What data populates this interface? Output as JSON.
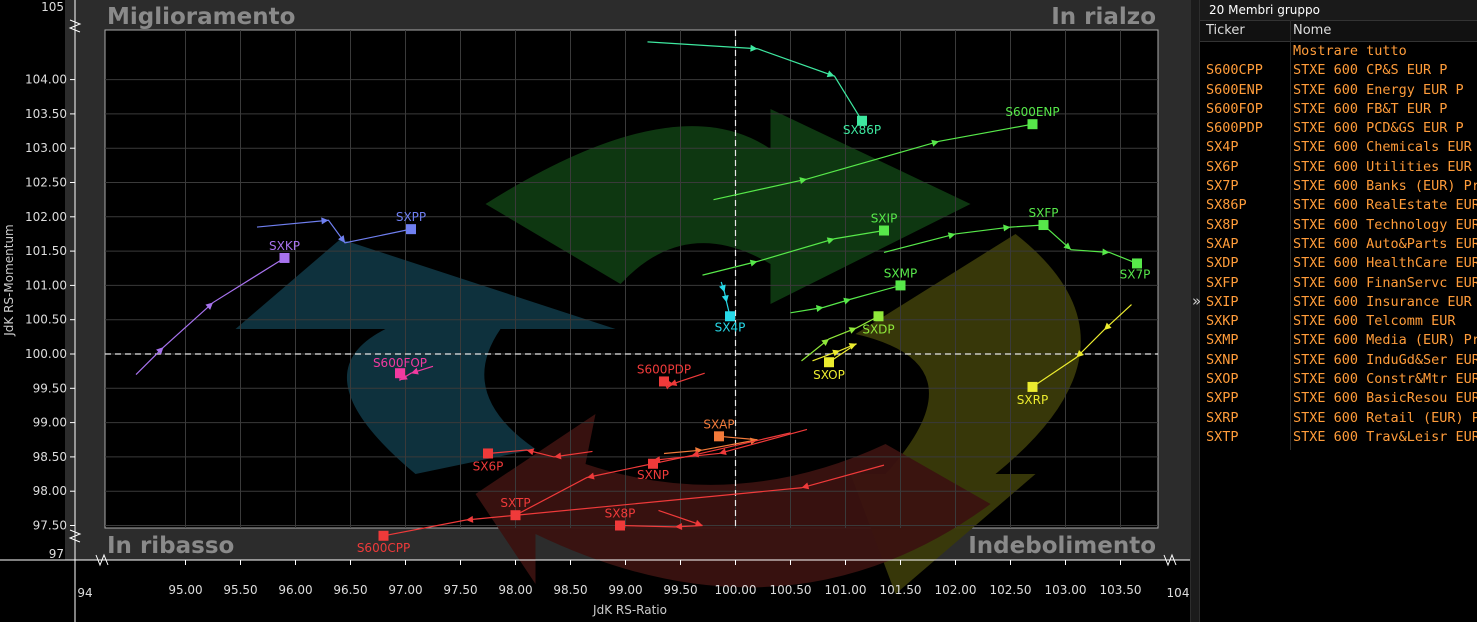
{
  "panel": {
    "title": "20 Membri gruppo",
    "col_ticker": "Ticker",
    "col_name": "Nome",
    "show_all": "Mostrare tutto",
    "rows": [
      {
        "ticker": "S600CPP",
        "name": "STXE 600 CP&S EUR P"
      },
      {
        "ticker": "S600ENP",
        "name": "STXE 600 Energy EUR P"
      },
      {
        "ticker": "S600FOP",
        "name": "STXE 600 FB&T EUR P"
      },
      {
        "ticker": "S600PDP",
        "name": "STXE 600 PCD&GS EUR P"
      },
      {
        "ticker": "SX4P",
        "name": "STXE 600 Chemicals EUR"
      },
      {
        "ticker": "SX6P",
        "name": "STXE 600 Utilities EUR"
      },
      {
        "ticker": "SX7P",
        "name": "STXE 600 Banks (EUR) Pr"
      },
      {
        "ticker": "SX86P",
        "name": "STXE 600 RealEstate EUR"
      },
      {
        "ticker": "SX8P",
        "name": "STXE 600 Technology EUR"
      },
      {
        "ticker": "SXAP",
        "name": "STXE 600 Auto&Parts EUR"
      },
      {
        "ticker": "SXDP",
        "name": "STXE 600 HealthCare EUR"
      },
      {
        "ticker": "SXFP",
        "name": "STXE 600 FinanServc EUR"
      },
      {
        "ticker": "SXIP",
        "name": "STXE 600 Insurance EUR"
      },
      {
        "ticker": "SXKP",
        "name": "STXE 600 Telcomm EUR"
      },
      {
        "ticker": "SXMP",
        "name": "STXE 600 Media (EUR) Pr"
      },
      {
        "ticker": "SXNP",
        "name": "STXE 600 InduGd&Ser EUR"
      },
      {
        "ticker": "SXOP",
        "name": "STXE 600 Constr&Mtr EUR"
      },
      {
        "ticker": "SXPP",
        "name": "STXE 600 BasicResou EUR"
      },
      {
        "ticker": "SXRP",
        "name": "STXE 600 Retail (EUR) Pr"
      },
      {
        "ticker": "SXTP",
        "name": "STXE 600 Trav&Leisr EUR"
      }
    ]
  },
  "chart_data": {
    "type": "scatter",
    "subtype": "relative-rotation-graph",
    "xlabel": "JdK RS-Ratio",
    "ylabel": "JdK RS-Momentum",
    "xlim": [
      94,
      104
    ],
    "ylim": [
      97,
      105
    ],
    "x_ticks": [
      95.0,
      95.5,
      96.0,
      96.5,
      97.0,
      97.5,
      98.0,
      98.5,
      99.0,
      99.5,
      100.0,
      100.5,
      101.0,
      101.5,
      102.0,
      102.5,
      103.0,
      103.5
    ],
    "x_tick_labels": [
      "95.00",
      "95.50",
      "96.00",
      "96.50",
      "97.00",
      "97.50",
      "98.00",
      "98.50",
      "99.00",
      "99.50",
      "100.00",
      "100.50",
      "101.00",
      "101.50",
      "102.00",
      "102.50",
      "103.00",
      "103.50"
    ],
    "y_ticks": [
      97.5,
      98.0,
      98.5,
      99.0,
      99.5,
      100.0,
      100.5,
      101.0,
      101.5,
      102.0,
      102.5,
      103.0,
      103.5,
      104.0
    ],
    "y_tick_labels": [
      "97.50",
      "98.00",
      "98.50",
      "99.00",
      "99.50",
      "100.00",
      "100.50",
      "101.00",
      "101.50",
      "102.00",
      "102.50",
      "103.00",
      "103.50",
      "104.00"
    ],
    "axis_break_labels": {
      "x_min": "94",
      "x_max": "104",
      "y_min": "97",
      "y_max": "105"
    },
    "quadrants": {
      "top_left": "Miglioramento",
      "top_right": "In rialzo",
      "bottom_left": "In ribasso",
      "bottom_right": "Indebolimento"
    },
    "grid": true,
    "center": [
      100,
      100
    ],
    "series": [
      {
        "name": "SX86P",
        "color": "#3ee8a0",
        "points": [
          [
            99.2,
            104.55
          ],
          [
            100.2,
            104.45
          ],
          [
            100.9,
            104.05
          ],
          [
            101.15,
            103.4
          ]
        ]
      },
      {
        "name": "S600ENP",
        "color": "#57e84a",
        "points": [
          [
            99.8,
            102.25
          ],
          [
            100.65,
            102.55
          ],
          [
            101.85,
            103.1
          ],
          [
            102.7,
            103.35
          ]
        ]
      },
      {
        "name": "SXPP",
        "color": "#6f7ff0",
        "points": [
          [
            95.65,
            101.85
          ],
          [
            96.3,
            101.95
          ],
          [
            96.45,
            101.62
          ],
          [
            97.05,
            101.82
          ]
        ]
      },
      {
        "name": "SXKP",
        "color": "#a772ee",
        "points": [
          [
            94.55,
            99.7
          ],
          [
            94.8,
            100.1
          ],
          [
            95.25,
            100.75
          ],
          [
            95.9,
            101.4
          ]
        ]
      },
      {
        "name": "SXIP",
        "color": "#57e84a",
        "points": [
          [
            99.7,
            101.15
          ],
          [
            100.2,
            101.35
          ],
          [
            100.9,
            101.68
          ],
          [
            101.35,
            101.8
          ]
        ]
      },
      {
        "name": "SXFP",
        "color": "#57e84a",
        "points": [
          [
            101.35,
            101.48
          ],
          [
            102.0,
            101.75
          ],
          [
            102.5,
            101.85
          ],
          [
            102.8,
            101.88
          ]
        ]
      },
      {
        "name": "SX7P",
        "color": "#57e84a",
        "points": [
          [
            102.8,
            101.88
          ],
          [
            103.05,
            101.52
          ],
          [
            103.4,
            101.48
          ],
          [
            103.65,
            101.32
          ]
        ]
      },
      {
        "name": "SX4P",
        "color": "#27d9e8",
        "points": [
          [
            99.87,
            101.05
          ],
          [
            99.9,
            100.9
          ],
          [
            99.92,
            100.75
          ],
          [
            99.95,
            100.55
          ]
        ]
      },
      {
        "name": "SXMP",
        "color": "#57e84a",
        "points": [
          [
            100.5,
            100.6
          ],
          [
            100.8,
            100.68
          ],
          [
            101.05,
            100.8
          ],
          [
            101.5,
            101.0
          ]
        ]
      },
      {
        "name": "SXDP",
        "color": "#8fe83a",
        "points": [
          [
            100.6,
            99.9
          ],
          [
            100.85,
            100.22
          ],
          [
            101.1,
            100.38
          ],
          [
            101.3,
            100.55
          ]
        ]
      },
      {
        "name": "SXOP",
        "color": "#ecec2f",
        "points": [
          [
            100.7,
            99.9
          ],
          [
            100.95,
            100.05
          ],
          [
            101.1,
            100.15
          ],
          [
            100.85,
            99.88
          ]
        ]
      },
      {
        "name": "SXRP",
        "color": "#ecec2f",
        "points": [
          [
            103.6,
            100.72
          ],
          [
            103.35,
            100.35
          ],
          [
            103.1,
            99.95
          ],
          [
            102.7,
            99.52
          ]
        ]
      },
      {
        "name": "S600FOP",
        "color": "#f23aa0",
        "points": [
          [
            97.25,
            99.82
          ],
          [
            97.05,
            99.72
          ],
          [
            96.95,
            99.62
          ],
          [
            96.95,
            99.72
          ]
        ]
      },
      {
        "name": "S600PDP",
        "color": "#ef3a3a",
        "points": [
          [
            99.72,
            99.72
          ],
          [
            99.4,
            99.55
          ],
          [
            99.38,
            99.5
          ],
          [
            99.35,
            99.6
          ]
        ]
      },
      {
        "name": "SXAP",
        "color": "#f27a3a",
        "points": [
          [
            99.35,
            98.55
          ],
          [
            99.7,
            98.6
          ],
          [
            100.2,
            98.75
          ],
          [
            99.85,
            98.8
          ]
        ]
      },
      {
        "name": "SX6P",
        "color": "#ef3a3a",
        "points": [
          [
            98.7,
            98.58
          ],
          [
            98.35,
            98.5
          ],
          [
            98.1,
            98.6
          ],
          [
            97.75,
            98.55
          ]
        ]
      },
      {
        "name": "SXNP",
        "color": "#ef3a3a",
        "points": [
          [
            100.65,
            98.9
          ],
          [
            99.85,
            98.55
          ],
          [
            99.25,
            98.45
          ],
          [
            99.25,
            98.4
          ]
        ]
      },
      {
        "name": "SXTP",
        "color": "#ef3a3a",
        "points": [
          [
            100.5,
            98.85
          ],
          [
            99.6,
            98.52
          ],
          [
            98.65,
            98.2
          ],
          [
            98.0,
            97.65
          ]
        ]
      },
      {
        "name": "SX8P",
        "color": "#ef3a3a",
        "points": [
          [
            99.3,
            97.72
          ],
          [
            99.7,
            97.5
          ],
          [
            99.45,
            97.48
          ],
          [
            98.95,
            97.5
          ]
        ]
      },
      {
        "name": "S600CPP",
        "color": "#ef3a3a",
        "points": [
          [
            101.35,
            98.38
          ],
          [
            100.6,
            98.05
          ],
          [
            97.55,
            97.58
          ],
          [
            96.8,
            97.35
          ]
        ]
      }
    ]
  }
}
